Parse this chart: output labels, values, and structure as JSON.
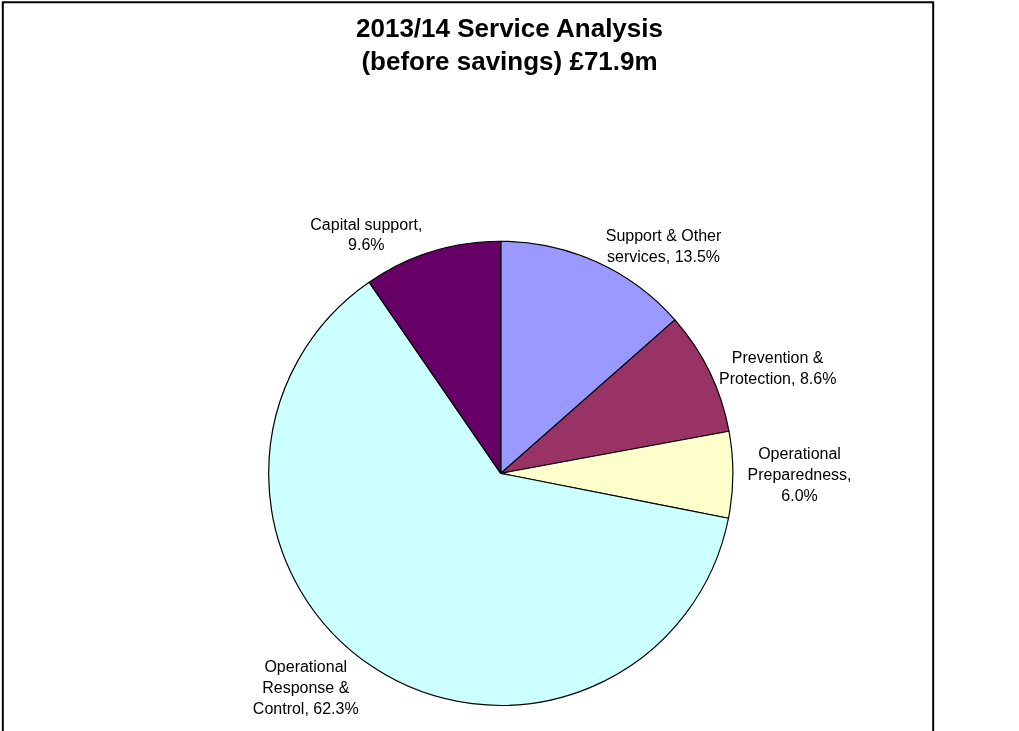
{
  "chart_data": {
    "type": "pie",
    "title": "2013/14 Service Analysis\n(before savings) £71.9m",
    "categories": [
      "Support & Other services, 13.5%",
      "Prevention & Protection, 8.6%",
      "Operational Preparedness, 6.0%",
      "Operational Response & Control, 62.3%",
      "Capital support, 9.6%"
    ],
    "values": [
      13.5,
      8.6,
      6.0,
      62.3,
      9.6
    ],
    "colors": [
      "#9999ff",
      "#993366",
      "#ffffcc",
      "#ccffff",
      "#660066"
    ],
    "legend": false
  }
}
